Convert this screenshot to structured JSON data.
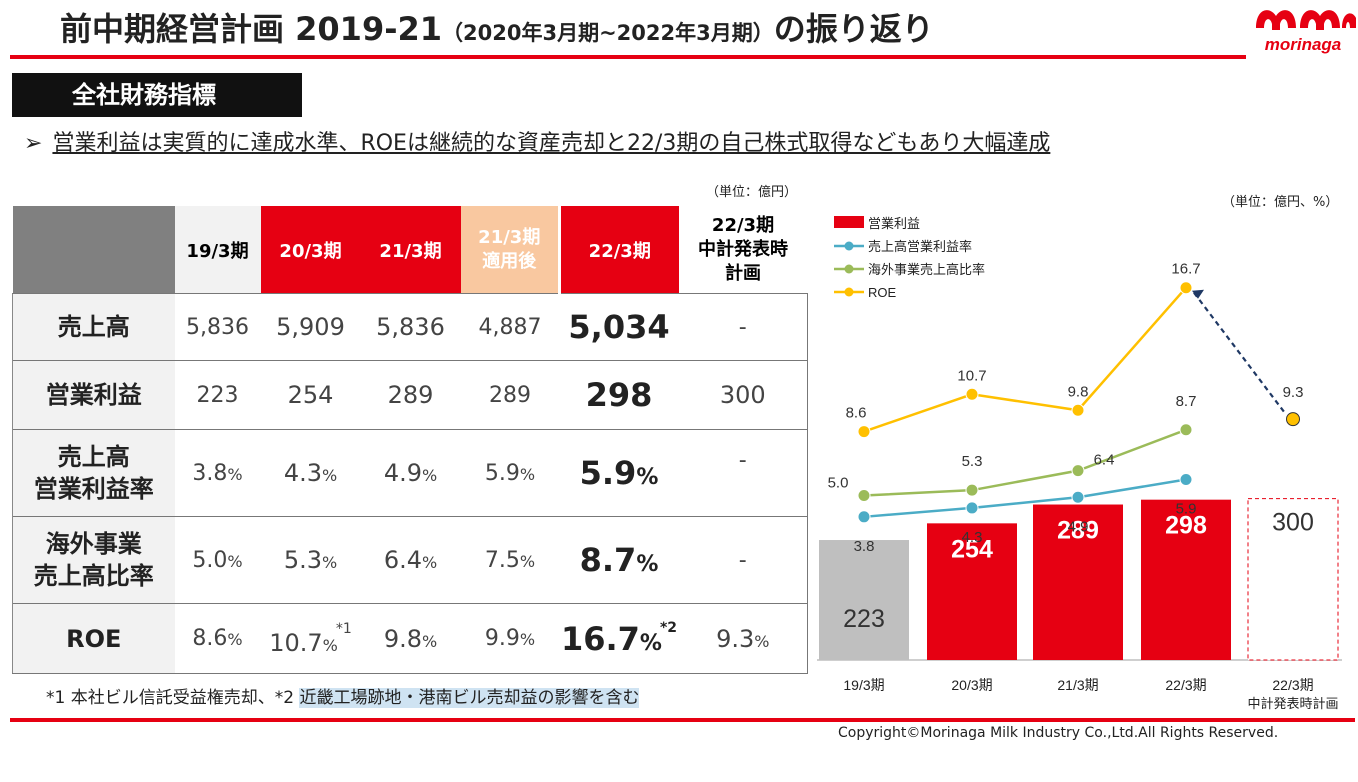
{
  "header": {
    "title_main": "前中期経営計画 2019-21",
    "title_period": "（2020年3月期~2022年3月期）",
    "title_tail": "の振り返り",
    "logo_text": "morinaga"
  },
  "section": {
    "label": "全社財務指標"
  },
  "bullet": {
    "marker": "➢",
    "text": "営業利益は実質的に達成水準、ROEは継続的な資産売却と22/3期の自己株式取得などもあり大幅達成"
  },
  "table": {
    "unit": "（単位：億円）",
    "headers": [
      {
        "label": "19/3期"
      },
      {
        "label": "20/3期"
      },
      {
        "label": "21/3期"
      },
      {
        "label": "21/3期\n適用後"
      },
      {
        "label": "22/3期"
      },
      {
        "label": "22/3期\n中計発表時\n計画"
      }
    ],
    "rows": [
      {
        "label": "売上高",
        "values": [
          "5,836",
          "5,909",
          "5,836",
          "4,887",
          "5,034",
          "-"
        ]
      },
      {
        "label": "営業利益",
        "values": [
          "223",
          "254",
          "289",
          "289",
          "298",
          "300"
        ]
      },
      {
        "label": "売上高\n営業利益率",
        "values": [
          "3.8",
          "4.3",
          "4.9",
          "5.9",
          "5.9",
          "-"
        ]
      },
      {
        "label": "海外事業\n売上高比率",
        "values": [
          "5.0",
          "5.3",
          "6.4",
          "7.5",
          "8.7",
          "-"
        ]
      },
      {
        "label": "ROE",
        "values": [
          "8.6",
          "10.7",
          "9.8",
          "9.9",
          "16.7",
          "9.3"
        ]
      }
    ],
    "pct_unit": "%",
    "sup1": "*1",
    "sup2": "*2"
  },
  "note": {
    "part1": "*1 本社ビル信託受益権売却、*2 ",
    "part2": "近畿工場跡地・港南ビル売却益の影響を含む"
  },
  "footer": {
    "copyright": "Copyright©Morinaga Milk Industry Co.,Ltd.All Rights Reserved."
  },
  "chart_data": {
    "type": "bar",
    "unit": "（単位：億円、%）",
    "categories": [
      "19/3期",
      "20/3期",
      "21/3期",
      "22/3期",
      "22/3期\n中計発表時計画"
    ],
    "series": [
      {
        "name": "営業利益",
        "kind": "bar",
        "color": "#e60012",
        "values": [
          223,
          254,
          289,
          298,
          300
        ]
      },
      {
        "name": "売上高営業利益率",
        "kind": "line",
        "color": "#4bacc6",
        "values": [
          3.8,
          4.3,
          4.9,
          5.9,
          null
        ]
      },
      {
        "name": "海外事業売上高比率",
        "kind": "line",
        "color": "#9bbb59",
        "values": [
          5.0,
          5.3,
          6.4,
          8.7,
          null
        ]
      },
      {
        "name": "ROE",
        "kind": "line",
        "color": "#ffc000",
        "values": [
          8.6,
          10.7,
          9.8,
          16.7,
          9.3
        ]
      }
    ],
    "bar_labels": [
      "223",
      "254",
      "289",
      "298",
      "300"
    ],
    "ratio_labels": [
      "3.8",
      "4.3",
      "4.9",
      "5.9"
    ],
    "overseas_labels": [
      "5.0",
      "5.3",
      "6.4",
      "8.7"
    ],
    "roe_labels": [
      "8.6",
      "10.7",
      "9.8",
      "16.7",
      "9.3"
    ],
    "colors": {
      "first_bar": "#bfbfbf",
      "plan_bar": "dashed",
      "arrow": "#1f3864"
    }
  }
}
